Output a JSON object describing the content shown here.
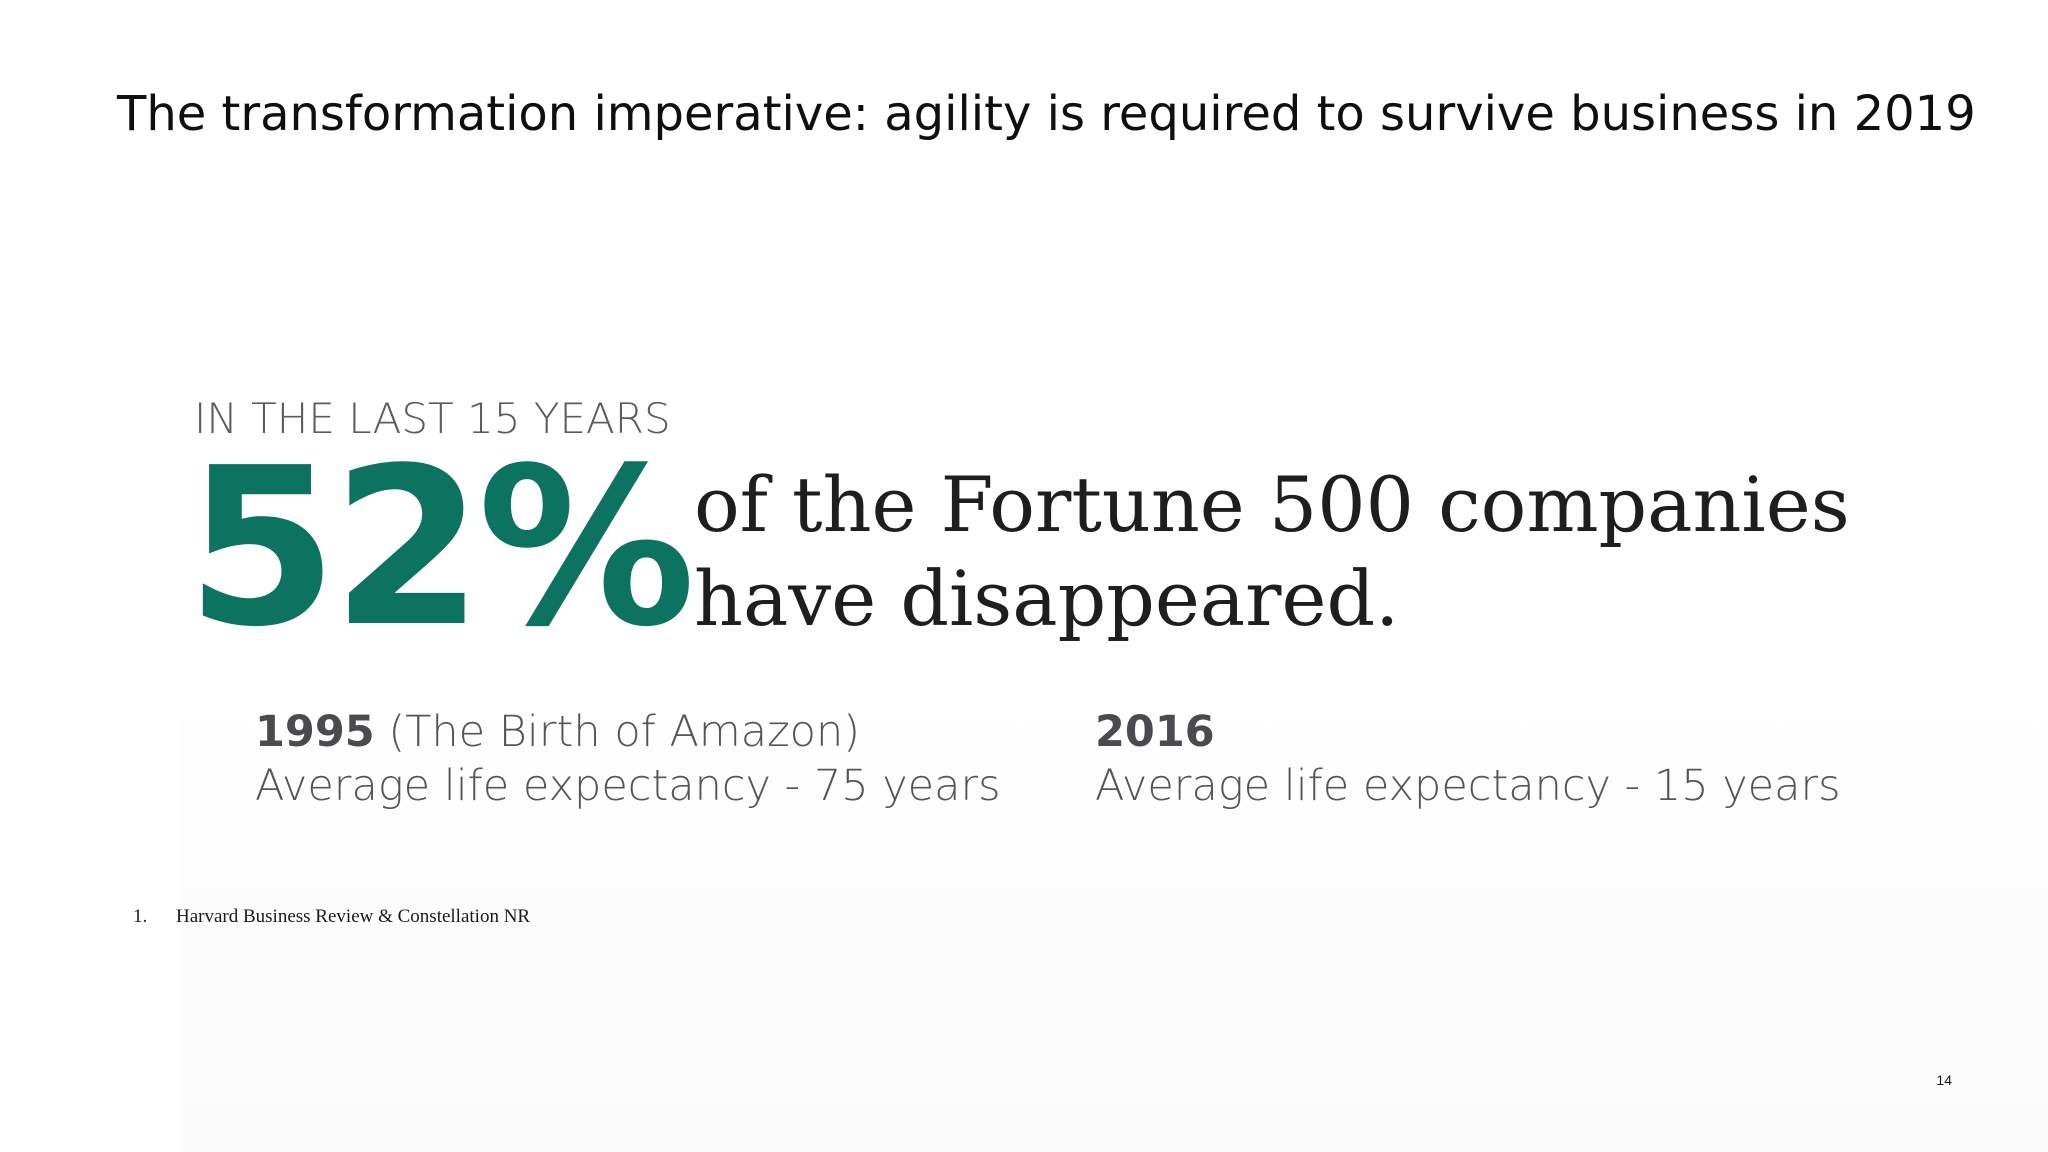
{
  "slide": {
    "title": "The transformation imperative: agility is required to survive business in 2019",
    "page_number": "14"
  },
  "stat": {
    "kicker": "IN THE LAST 15 YEARS",
    "value": "52%",
    "text_line1": "of the Fortune 500 companies",
    "text_line2": "have disappeared.",
    "accent_color": "#0d7361"
  },
  "comparison": {
    "left": {
      "year": "1995",
      "note": "(The Birth of Amazon)",
      "detail": "Average life expectancy - 75 years"
    },
    "right": {
      "year": "2016",
      "detail": "Average life expectancy - 15 years"
    }
  },
  "footnote": {
    "number": "1.",
    "text": "Harvard Business Review & Constellation NR"
  }
}
